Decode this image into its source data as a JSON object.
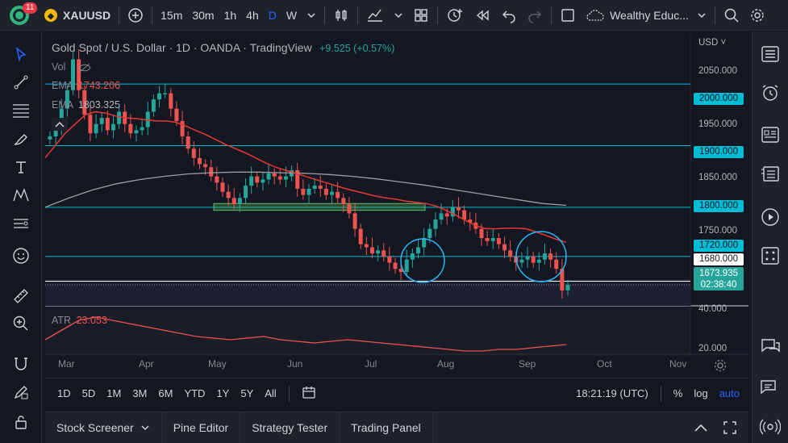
{
  "topbar": {
    "badge": "11",
    "symbol": "XAUUSD",
    "timeframes": [
      "15m",
      "30m",
      "1h",
      "4h",
      "D",
      "W"
    ],
    "active_timeframe": "D",
    "layout_name": "Wealthy Educ..."
  },
  "legend": {
    "title": "Gold Spot / U.S. Dollar · 1D · OANDA · TradingView",
    "change": "+9.525 (+0.57%)",
    "vol_label": "Vol",
    "ema1_label": "EMA",
    "ema1_value": "1743.206",
    "ema2_label": "EMA",
    "ema2_value": "1803.325",
    "atr_label": "ATR",
    "atr_value": "23.053"
  },
  "price_axis": {
    "currency": "USD",
    "ticks": [
      "2050.000",
      "1950.000",
      "1850.000",
      "1750.000"
    ],
    "levels": [
      "2000.000",
      "1900.000",
      "1800.000",
      "1720.000",
      "1680.000"
    ],
    "current_price": "1673.935",
    "countdown": "02:38:40",
    "atr_ticks": [
      "40.000",
      "20.000"
    ]
  },
  "time_axis": [
    "Mar",
    "Apr",
    "May",
    "Jun",
    "Jul",
    "Aug",
    "Sep",
    "Oct",
    "Nov"
  ],
  "bottombar": {
    "ranges": [
      "1D",
      "5D",
      "1M",
      "3M",
      "6M",
      "YTD",
      "1Y",
      "5Y",
      "All"
    ],
    "clock": "18:21:19 (UTC)",
    "percent": "%",
    "log": "log",
    "auto": "auto"
  },
  "panel_tabs": [
    "Stock Screener",
    "Pine Editor",
    "Strategy Tester",
    "Trading Panel"
  ],
  "colors": {
    "up": "#26a69a",
    "down": "#ef5350",
    "ema_fast": "#e53935",
    "ema_slow": "#9e9e9e",
    "level_line": "#00bcd4",
    "accent": "#2962ff"
  },
  "chart_data": {
    "type": "candlestick",
    "y_range": [
      1640,
      2080
    ],
    "x_labels": [
      "Mar",
      "Apr",
      "May",
      "Jun",
      "Jul",
      "Aug",
      "Sep",
      "Oct",
      "Nov"
    ],
    "close_series": [
      1915,
      1925,
      1960,
      1990,
      2040,
      1990,
      1950,
      1920,
      1935,
      1945,
      1925,
      1935,
      1955,
      1935,
      1920,
      1925,
      1930,
      1955,
      1975,
      1985,
      1985,
      1960,
      1940,
      1915,
      1895,
      1880,
      1870,
      1865,
      1850,
      1840,
      1825,
      1815,
      1805,
      1815,
      1835,
      1850,
      1840,
      1845,
      1855,
      1850,
      1845,
      1850,
      1860,
      1830,
      1820,
      1830,
      1835,
      1830,
      1820,
      1825,
      1815,
      1805,
      1790,
      1765,
      1740,
      1735,
      1725,
      1730,
      1720,
      1710,
      1700,
      1695,
      1715,
      1725,
      1735,
      1750,
      1765,
      1780,
      1790,
      1785,
      1800,
      1795,
      1780,
      1775,
      1765,
      1750,
      1745,
      1750,
      1740,
      1730,
      1720,
      1710,
      1715,
      1720,
      1710,
      1715,
      1725,
      1715,
      1700,
      1665,
      1674
    ],
    "ema_fast_series": [
      1880,
      1900,
      1920,
      1935,
      1950,
      1955,
      1953,
      1948,
      1945,
      1944,
      1942,
      1940,
      1940,
      1938,
      1932,
      1925,
      1918,
      1910,
      1902,
      1895,
      1888,
      1880,
      1872,
      1865,
      1860,
      1855,
      1850,
      1845,
      1840,
      1835,
      1830,
      1826,
      1822,
      1818,
      1815,
      1813,
      1810,
      1808,
      1806,
      1802,
      1795,
      1787,
      1778,
      1770,
      1765,
      1765,
      1766,
      1766,
      1765,
      1760,
      1754,
      1748,
      1743
    ],
    "ema_slow_series": [
      1800,
      1815,
      1828,
      1838,
      1845,
      1850,
      1854,
      1856,
      1857,
      1857,
      1856,
      1855,
      1853,
      1850,
      1846,
      1841,
      1836,
      1830,
      1824,
      1818,
      1812,
      1806,
      1803
    ],
    "atr_series": [
      26,
      32,
      38,
      40,
      38,
      36,
      34,
      32,
      30,
      28,
      27,
      26,
      27,
      28,
      26,
      25,
      24,
      25,
      26,
      25,
      24,
      23,
      22,
      21,
      20,
      19,
      19,
      20,
      20,
      21,
      22,
      23
    ],
    "atr_range": [
      16,
      46
    ],
    "horizontal_levels": [
      2000,
      1900,
      1800,
      1720,
      1680
    ],
    "support_zone": [
      1795,
      1806
    ]
  }
}
